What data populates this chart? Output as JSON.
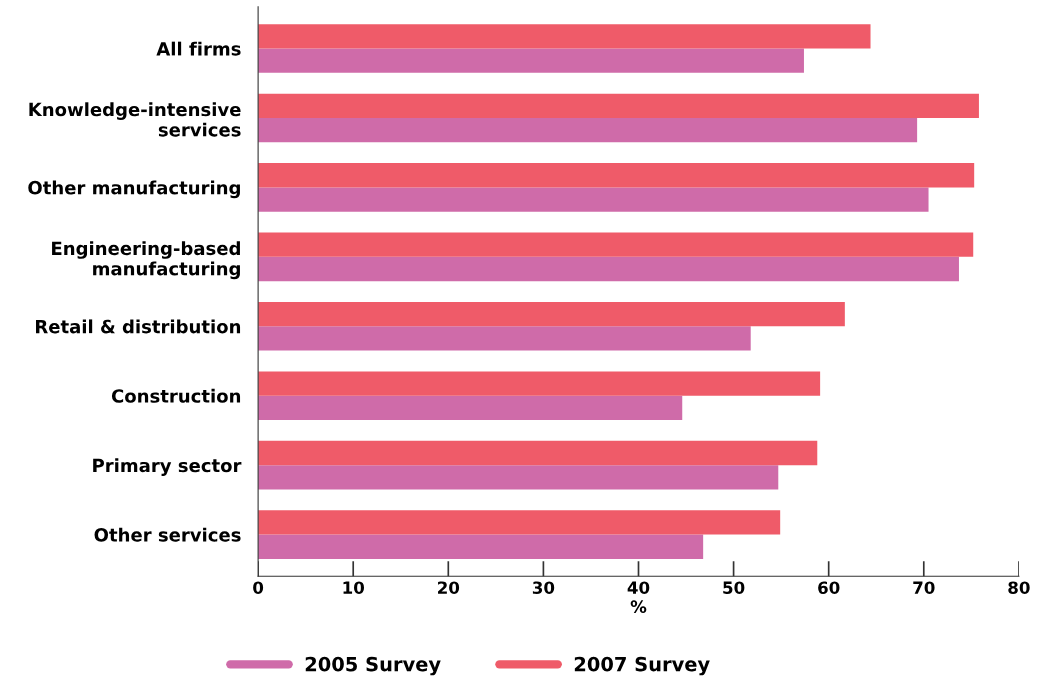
{
  "chart_data": {
    "type": "bar",
    "orientation": "horizontal",
    "xlabel": "%",
    "categories": [
      "All firms",
      "Knowledge-intensive\nservices",
      "Other manufacturing",
      "Engineering-based\nmanufacturing",
      "Retail & distribution",
      "Construction",
      "Primary sector",
      "Other services"
    ],
    "series": [
      {
        "name": "2005 Survey",
        "color": "#cf6ba9",
        "values": [
          57.4,
          69.3,
          70.5,
          73.7,
          51.8,
          44.6,
          54.7,
          46.8
        ]
      },
      {
        "name": "2007 Survey",
        "color": "#ef5b69",
        "values": [
          64.4,
          75.8,
          75.3,
          75.2,
          61.7,
          59.1,
          58.8,
          54.9
        ]
      }
    ],
    "xlim": [
      0,
      80
    ],
    "xticks": [
      0,
      10,
      20,
      30,
      40,
      50,
      60,
      70,
      80
    ],
    "grid": false,
    "legend": "bottom"
  }
}
